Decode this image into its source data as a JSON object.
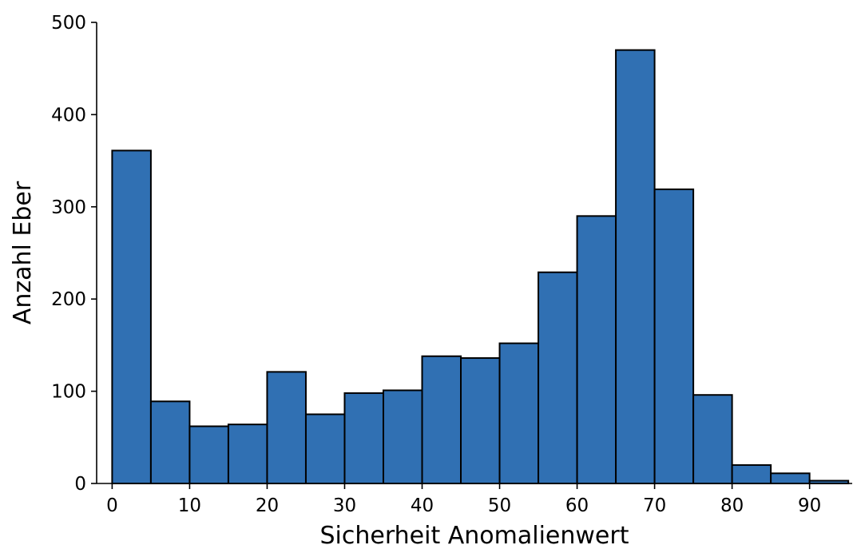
{
  "chart_data": {
    "type": "bar",
    "title": "",
    "xlabel": "Sicherheit Anomalienwert",
    "ylabel": "Anzahl Eber",
    "bin_width": 5,
    "bins": [
      {
        "start": 0,
        "end": 5,
        "count": 361
      },
      {
        "start": 5,
        "end": 10,
        "count": 89
      },
      {
        "start": 10,
        "end": 15,
        "count": 62
      },
      {
        "start": 15,
        "end": 20,
        "count": 64
      },
      {
        "start": 20,
        "end": 25,
        "count": 121
      },
      {
        "start": 25,
        "end": 30,
        "count": 75
      },
      {
        "start": 30,
        "end": 35,
        "count": 98
      },
      {
        "start": 35,
        "end": 40,
        "count": 101
      },
      {
        "start": 40,
        "end": 45,
        "count": 138
      },
      {
        "start": 45,
        "end": 50,
        "count": 136
      },
      {
        "start": 50,
        "end": 55,
        "count": 152
      },
      {
        "start": 55,
        "end": 60,
        "count": 229
      },
      {
        "start": 60,
        "end": 65,
        "count": 290
      },
      {
        "start": 65,
        "end": 70,
        "count": 470
      },
      {
        "start": 70,
        "end": 75,
        "count": 319
      },
      {
        "start": 75,
        "end": 80,
        "count": 96
      },
      {
        "start": 80,
        "end": 85,
        "count": 20
      },
      {
        "start": 85,
        "end": 90,
        "count": 11
      },
      {
        "start": 90,
        "end": 95,
        "count": 3
      }
    ],
    "xlim": [
      -2,
      95.5
    ],
    "ylim": [
      0,
      500
    ],
    "x_ticks": [
      0,
      10,
      20,
      30,
      40,
      50,
      60,
      70,
      80,
      90
    ],
    "y_ticks": [
      0,
      100,
      200,
      300,
      400,
      500
    ],
    "grid": false,
    "legend": "none",
    "colors": {
      "bar_fill": "#3070b3",
      "bar_edge": "#000000"
    }
  }
}
